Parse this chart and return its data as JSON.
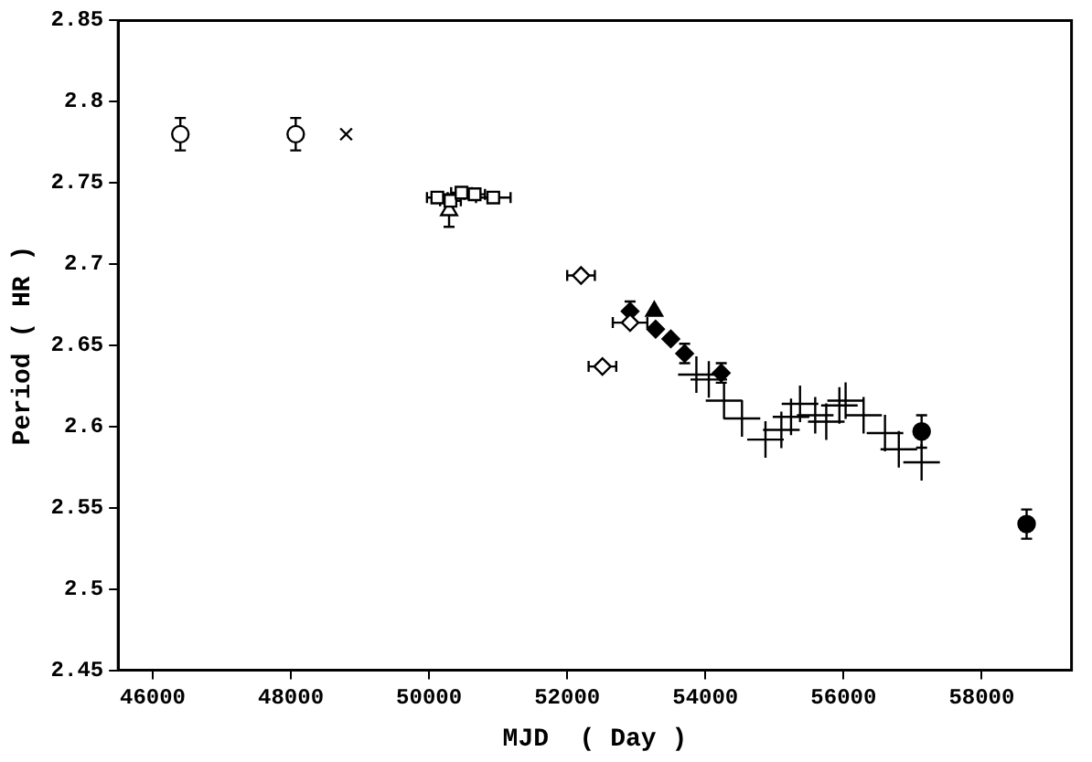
{
  "chart_data": {
    "type": "scatter",
    "xlabel": "MJD  ( Day )",
    "ylabel": "Period ( HR )",
    "xlim": [
      45500,
      59300
    ],
    "xticks": [
      46000,
      48000,
      50000,
      52000,
      54000,
      56000,
      58000
    ],
    "ylim": [
      2.45,
      2.85
    ],
    "yticks": [
      2.45,
      2.5,
      2.55,
      2.6,
      2.65,
      2.7,
      2.75,
      2.8,
      2.85
    ],
    "grid": false,
    "legend": false,
    "series": [
      {
        "color": "#000000",
        "marker": "circle",
        "x": [
          46400,
          48070
        ],
        "values": [
          2.78,
          2.78
        ],
        "errors": [
          0.01,
          0.01
        ]
      },
      {
        "color": "#000000",
        "marker": "cross",
        "x": [
          48800
        ],
        "values": [
          2.78
        ]
      },
      {
        "color": "#000000",
        "marker": "square",
        "x": [
          50120,
          50310,
          50470,
          50660,
          50930
        ],
        "values": [
          2.741,
          2.739,
          2.744,
          2.743,
          2.741
        ],
        "xerrors": [
          150,
          150,
          150,
          150,
          250
        ]
      },
      {
        "color": "#000000",
        "marker": "triangle",
        "x": [
          50290
        ],
        "values": [
          2.733
        ],
        "errors": [
          0.01
        ]
      },
      {
        "color": "#000000",
        "marker": "diamond",
        "x": [
          52200,
          52510,
          52910
        ],
        "values": [
          2.693,
          2.637,
          2.664
        ],
        "xerrors": [
          200,
          200,
          250
        ]
      },
      {
        "color": "#000000",
        "colors": [
          "#000000",
          "#000000",
          "#000000",
          "#000000",
          "#000000",
          "#000000"
        ],
        "marker": "diamond",
        "x": [
          52910,
          52950,
          53280,
          53500,
          53700,
          54230
        ],
        "values": [
          2.671,
          null,
          2.66,
          2.654,
          2.645,
          2.633
        ],
        "errors": [
          0.006,
          null,
          null,
          null,
          0.006,
          0.006
        ]
      },
      {
        "color": "#000000",
        "colors": [
          "#000000"
        ],
        "marker": "triangle",
        "x": [
          53260
        ],
        "values": [
          2.671
        ]
      },
      {
        "color": "#000000",
        "marker": "plus",
        "x": [
          53870,
          54050,
          54270,
          54530,
          54870,
          55100,
          55240,
          55370,
          55590,
          55750,
          55940,
          56030,
          56290,
          56600,
          56800,
          57130
        ],
        "values": [
          2.632,
          2.629,
          2.616,
          2.605,
          2.592,
          2.598,
          2.606,
          2.614,
          2.607,
          2.603,
          2.613,
          2.616,
          2.607,
          2.596,
          2.586,
          2.578
        ]
      },
      {
        "color": "#000000",
        "colors": [
          "#000000",
          "#000000"
        ],
        "marker": "circle",
        "x": [
          57130,
          58650
        ],
        "values": [
          2.597,
          2.54
        ],
        "errors": [
          0.01,
          0.009
        ]
      }
    ]
  }
}
